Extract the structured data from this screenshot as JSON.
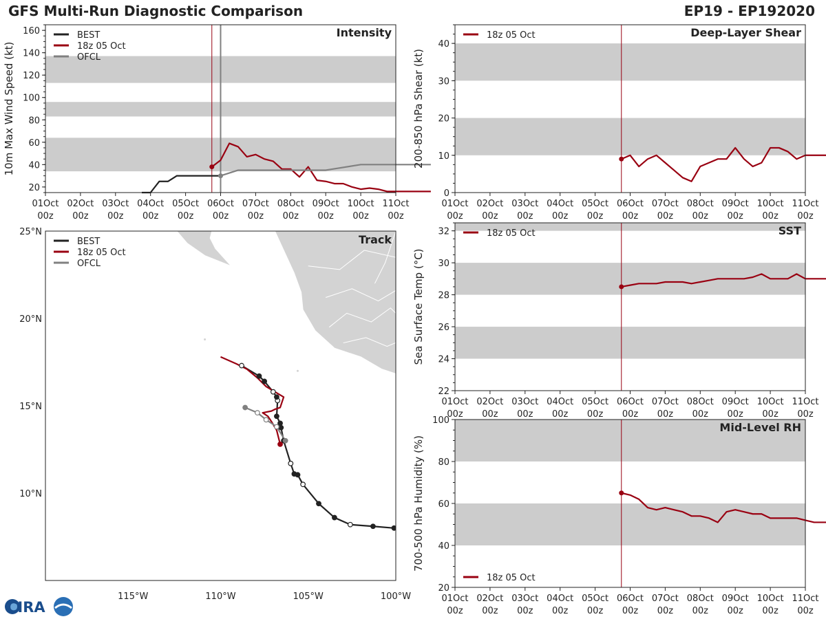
{
  "header": {
    "title": "GFS Multi-Run Diagnostic Comparison",
    "storm_id": "EP19 - EP192020"
  },
  "colors": {
    "best": "#222222",
    "run": "#990011",
    "ofcl": "#808080",
    "band": "#cccccc",
    "land": "#d3d3d3"
  },
  "time_axis": {
    "labels": [
      "01Oct\n00z",
      "02Oct\n00z",
      "03Oct\n00z",
      "04Oct\n00z",
      "05Oct\n00z",
      "06Oct\n00z",
      "07Oct\n00z",
      "08Oct\n00z",
      "09Oct\n00z",
      "10Oct\n00z",
      "11Oct\n00z"
    ],
    "init_time": 4.75,
    "ofcl_time": 5.0
  },
  "logo_text": "CIRA",
  "chart_data": [
    {
      "id": "intensity",
      "type": "line",
      "title": "Intensity",
      "ylabel": "10m Max Wind Speed (kt)",
      "ylim": [
        15,
        165
      ],
      "yticks": [
        20,
        40,
        60,
        80,
        100,
        120,
        140,
        160
      ],
      "bands": [
        [
          34,
          64
        ],
        [
          83,
          96
        ],
        [
          113,
          137
        ]
      ],
      "legend": [
        "BEST",
        "18z 05 Oct",
        "OFCL"
      ],
      "legend_pos": "top-left",
      "series": [
        {
          "name": "BEST",
          "x": [
            2.75,
            3.0,
            3.25,
            3.5,
            3.75,
            4.0,
            4.25,
            4.5,
            4.75,
            5.0
          ],
          "values": [
            15,
            15,
            25,
            25,
            30,
            30,
            30,
            30,
            30,
            30
          ]
        },
        {
          "name": "18z 05 Oct",
          "x": [
            4.75,
            5.0,
            5.25,
            5.5,
            5.75,
            6.0,
            6.25,
            6.5,
            6.75,
            7.0,
            7.25,
            7.5,
            7.75,
            8.0,
            8.25,
            8.5,
            8.75,
            9.0,
            9.25,
            9.5,
            9.75,
            10.0,
            10.25,
            10.5,
            10.75,
            11.0
          ],
          "values": [
            38,
            44,
            59,
            56,
            47,
            49,
            45,
            43,
            36,
            36,
            29,
            38,
            26,
            25,
            23,
            23,
            20,
            18,
            19,
            18,
            16,
            16,
            16,
            16,
            16,
            16
          ]
        },
        {
          "name": "OFCL",
          "x": [
            5.0,
            5.5,
            6.0,
            6.5,
            7.0,
            7.5,
            8.0,
            9.0,
            10.0,
            11.0
          ],
          "values": [
            30,
            35,
            35,
            35,
            35,
            35,
            35,
            40,
            40,
            40
          ]
        }
      ]
    },
    {
      "id": "shear",
      "type": "line",
      "title": "Deep-Layer Shear",
      "ylabel": "200-850 hPa Shear (kt)",
      "ylim": [
        0,
        45
      ],
      "yticks": [
        0,
        10,
        20,
        30,
        40
      ],
      "bands": [
        [
          10,
          20
        ],
        [
          30,
          40
        ]
      ],
      "legend": [
        "18z 05 Oct"
      ],
      "legend_pos": "top-left",
      "series": [
        {
          "name": "18z 05 Oct",
          "x": [
            4.75,
            5.0,
            5.25,
            5.5,
            5.75,
            6.0,
            6.25,
            6.5,
            6.75,
            7.0,
            7.25,
            7.5,
            7.75,
            8.0,
            8.25,
            8.5,
            8.75,
            9.0,
            9.25,
            9.5,
            9.75,
            10.0,
            10.25,
            10.5,
            10.75,
            11.0
          ],
          "values": [
            9,
            10,
            7,
            9,
            10,
            8,
            6,
            4,
            3,
            7,
            8,
            9,
            9,
            12,
            9,
            7,
            8,
            12,
            12,
            11,
            9,
            10,
            10,
            10,
            10,
            10
          ]
        }
      ]
    },
    {
      "id": "sst",
      "type": "line",
      "title": "SST",
      "ylabel": "Sea Surface Temp (°C)",
      "ylim": [
        22,
        32.5
      ],
      "yticks": [
        22,
        24,
        26,
        28,
        30,
        32
      ],
      "bands": [
        [
          24,
          26
        ],
        [
          28,
          30
        ],
        [
          32,
          32.5
        ]
      ],
      "legend": [
        "18z 05 Oct"
      ],
      "legend_pos": "top-left",
      "series": [
        {
          "name": "18z 05 Oct",
          "x": [
            4.75,
            5.0,
            5.25,
            5.5,
            5.75,
            6.0,
            6.25,
            6.5,
            6.75,
            7.0,
            7.25,
            7.5,
            7.75,
            8.0,
            8.25,
            8.5,
            8.75,
            9.0,
            9.25,
            9.5,
            9.75,
            10.0,
            10.25,
            10.5,
            10.75,
            11.0
          ],
          "values": [
            28.5,
            28.6,
            28.7,
            28.7,
            28.7,
            28.8,
            28.8,
            28.8,
            28.7,
            28.8,
            28.9,
            29.0,
            29.0,
            29.0,
            29.0,
            29.1,
            29.3,
            29.0,
            29.0,
            29.0,
            29.3,
            29.0,
            29.0,
            29.0,
            29.0,
            29.0
          ]
        }
      ]
    },
    {
      "id": "rh",
      "type": "line",
      "title": "Mid-Level RH",
      "ylabel": "700-500 hPa Humidity (%)",
      "ylim": [
        20,
        100
      ],
      "yticks": [
        20,
        40,
        60,
        80,
        100
      ],
      "bands": [
        [
          40,
          60
        ],
        [
          80,
          100
        ]
      ],
      "legend": [
        "18z 05 Oct"
      ],
      "legend_pos": "bottom-left",
      "series": [
        {
          "name": "18z 05 Oct",
          "x": [
            4.75,
            5.0,
            5.25,
            5.5,
            5.75,
            6.0,
            6.25,
            6.5,
            6.75,
            7.0,
            7.25,
            7.5,
            7.75,
            8.0,
            8.25,
            8.5,
            8.75,
            9.0,
            9.25,
            9.5,
            9.75,
            10.0,
            10.25,
            10.5,
            10.75,
            11.0
          ],
          "values": [
            65,
            64,
            62,
            58,
            57,
            58,
            57,
            56,
            54,
            54,
            53,
            51,
            56,
            57,
            56,
            55,
            55,
            53,
            53,
            53,
            53,
            52,
            51,
            51,
            51,
            51
          ]
        }
      ]
    },
    {
      "id": "track",
      "type": "scatter",
      "title": "Track",
      "xlim": [
        -120,
        -100
      ],
      "ylim": [
        5,
        25
      ],
      "xticks": [
        -115,
        -110,
        -105,
        -100
      ],
      "xtick_labels": [
        "115°W",
        "110°W",
        "105°W",
        "100°W"
      ],
      "yticks": [
        10,
        15,
        20,
        25
      ],
      "ytick_labels": [
        "10°N",
        "15°N",
        "20°N",
        "25°N"
      ],
      "legend": [
        "BEST",
        "18z 05 Oct",
        "OFCL"
      ],
      "legend_pos": "top-left",
      "series": [
        {
          "name": "BEST",
          "lon": [
            -100.1,
            -101.3,
            -102.6,
            -103.5,
            -104.4,
            -105.3,
            -105.6,
            -105.8,
            -106.0,
            -106.4,
            -106.55,
            -106.6,
            -106.8,
            -106.75,
            -106.8,
            -107.0,
            -107.5,
            -107.8,
            -108.8
          ],
          "lat": [
            8.0,
            8.1,
            8.2,
            8.6,
            9.4,
            10.5,
            11.05,
            11.1,
            11.7,
            13.0,
            13.75,
            14.0,
            14.4,
            15.3,
            15.5,
            15.8,
            16.4,
            16.7,
            17.3
          ],
          "open": [
            false,
            false,
            true,
            false,
            false,
            true,
            false,
            false,
            true,
            false,
            false,
            false,
            false,
            true,
            false,
            true,
            false,
            false,
            true
          ]
        },
        {
          "name": "18z 05 Oct",
          "lon": [
            -106.6,
            -106.8,
            -107.1,
            -107.3,
            -107.6,
            -107.1,
            -106.9,
            -106.6,
            -106.4,
            -106.9,
            -107.4,
            -107.9,
            -108.5,
            -109.1,
            -110.0
          ],
          "lat": [
            12.8,
            13.6,
            14.1,
            14.4,
            14.6,
            14.7,
            14.8,
            14.9,
            15.5,
            15.8,
            16.1,
            16.6,
            17.1,
            17.4,
            17.8
          ],
          "open": [
            false,
            false,
            false,
            false,
            false,
            false,
            false,
            false,
            false,
            false,
            false,
            false,
            false,
            false,
            false
          ]
        },
        {
          "name": "OFCL",
          "lon": [
            -106.3,
            -106.8,
            -107.4,
            -107.9,
            -108.6
          ],
          "lat": [
            13.0,
            13.8,
            14.2,
            14.6,
            14.9
          ],
          "open": [
            false,
            true,
            true,
            true,
            false
          ]
        }
      ]
    }
  ]
}
